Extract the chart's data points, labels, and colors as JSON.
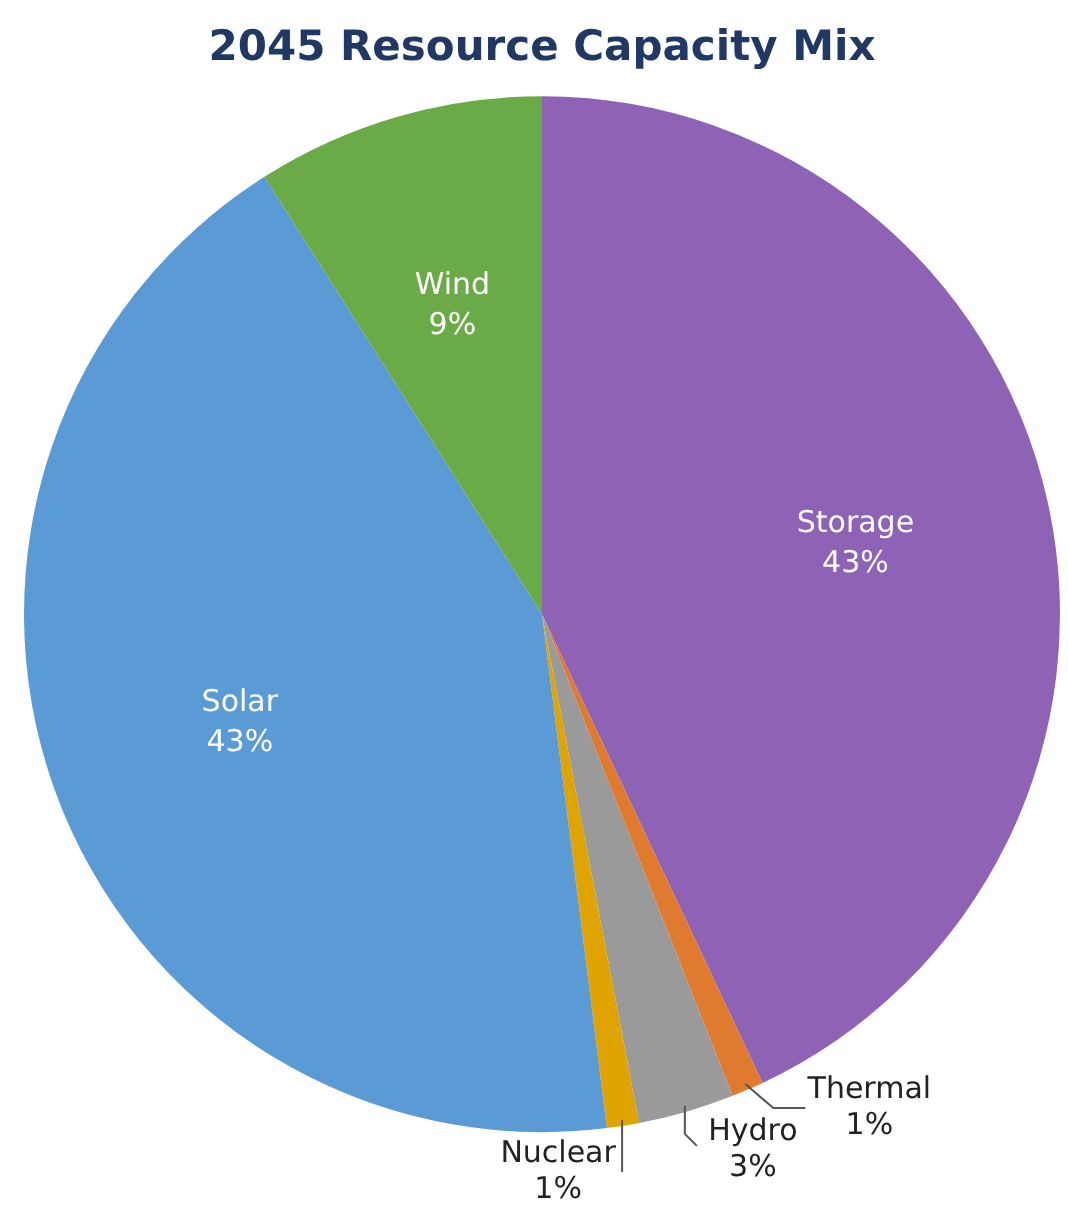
{
  "chart_data": {
    "type": "pie",
    "title": "2045 Resource Capacity Mix",
    "categories": [
      "Storage",
      "Thermal",
      "Hydro",
      "Nuclear",
      "Solar",
      "Wind"
    ],
    "values": [
      43,
      1,
      3,
      1,
      43,
      9
    ],
    "colors": [
      "#8e62b4",
      "#e07a2e",
      "#9a9a9a",
      "#e0a400",
      "#5b9bd5",
      "#6aab47"
    ],
    "value_labels": [
      "43%",
      "1%",
      "3%",
      "1%",
      "43%",
      "9%"
    ],
    "legend": false
  }
}
